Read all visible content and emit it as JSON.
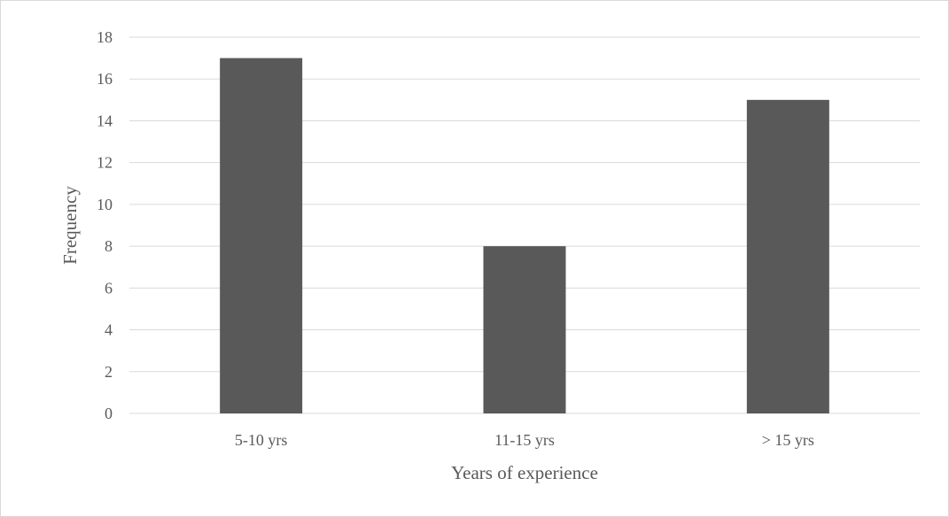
{
  "chart_data": {
    "type": "bar",
    "categories": [
      "5-10 yrs",
      "11-15 yrs",
      "> 15 yrs"
    ],
    "values": [
      17,
      8,
      15
    ],
    "title": "",
    "xlabel": "Years of experience",
    "ylabel": "Frequency",
    "ylim": [
      0,
      18
    ],
    "yticks": [
      0,
      2,
      4,
      6,
      8,
      10,
      12,
      14,
      16,
      18
    ],
    "grid": true,
    "legend": "none",
    "bar_color": "#595959",
    "grid_color": "#d9d9d9"
  }
}
